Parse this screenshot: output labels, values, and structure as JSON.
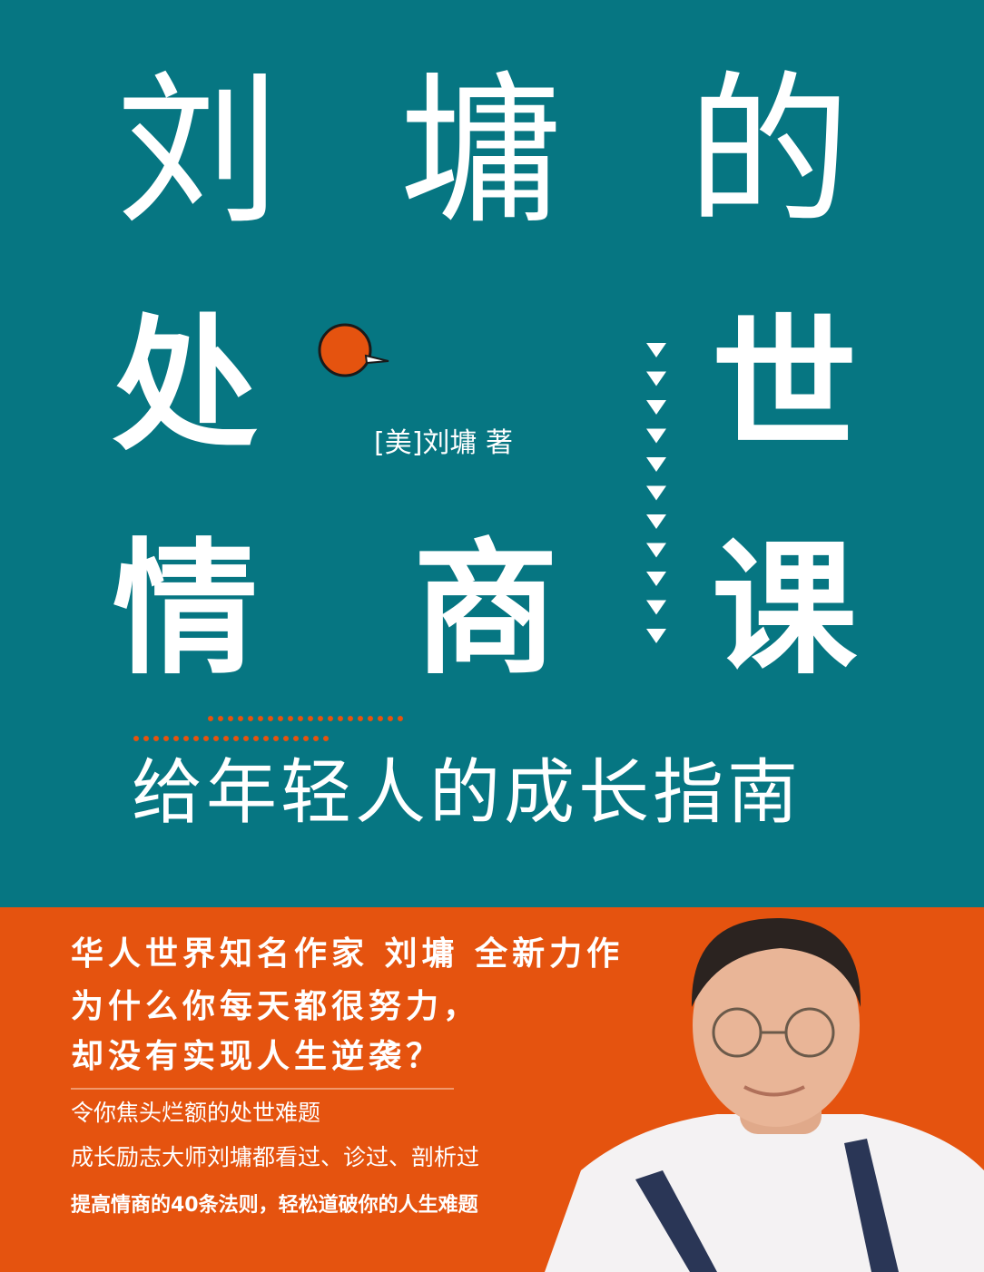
{
  "cover": {
    "title_chars": [
      "刘",
      "墉",
      "的",
      "处",
      "世",
      "情",
      "商",
      "课"
    ],
    "author": "[美]刘墉 著",
    "subtitle": "给年轻人的成长指南",
    "blurb": {
      "headline": [
        "华人世界知名作家 刘墉 全新力作",
        "为什么你每天都很努力，",
        "却没有实现人生逆袭？"
      ],
      "lines": [
        "令你焦头烂额的处世难题",
        "成长励志大师刘墉都看过、诊过、剖析过"
      ],
      "tagline": "提高情商的40条法则，轻松道破你的人生难题"
    }
  }
}
